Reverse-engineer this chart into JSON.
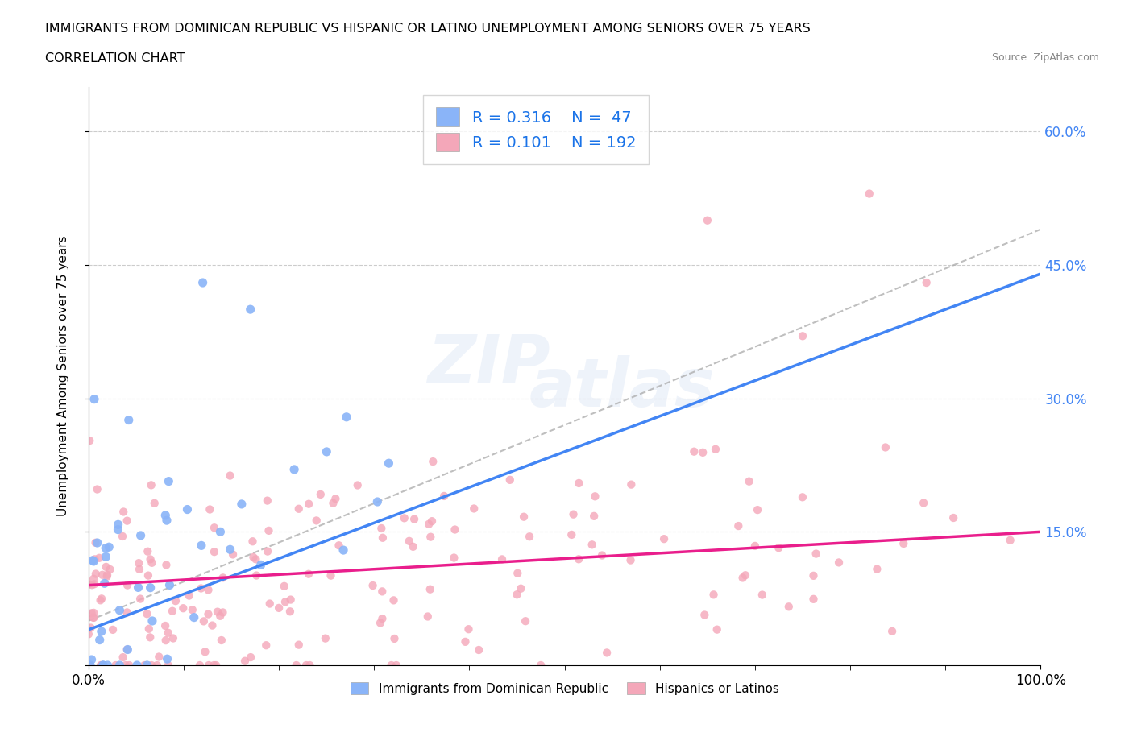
{
  "title_line1": "IMMIGRANTS FROM DOMINICAN REPUBLIC VS HISPANIC OR LATINO UNEMPLOYMENT AMONG SENIORS OVER 75 YEARS",
  "title_line2": "CORRELATION CHART",
  "source_text": "Source: ZipAtlas.com",
  "ylabel": "Unemployment Among Seniors over 75 years",
  "watermark_line1": "ZIP",
  "watermark_line2": "atlas",
  "blue_R": 0.316,
  "blue_N": 47,
  "pink_R": 0.101,
  "pink_N": 192,
  "blue_scatter_color": "#8ab4f8",
  "pink_scatter_color": "#f4a7b9",
  "blue_line_color": "#4285f4",
  "pink_line_color": "#e91e8c",
  "legend_label_color": "#1a73e8",
  "ytick_color": "#4285f4",
  "xlim": [
    0,
    1.0
  ],
  "ylim": [
    0,
    0.65
  ],
  "ytick_positions": [
    0.0,
    0.15,
    0.3,
    0.45,
    0.6
  ],
  "ytick_labels": [
    "",
    "15.0%",
    "30.0%",
    "45.0%",
    "60.0%"
  ],
  "bottom_legend_label1": "Immigrants from Dominican Republic",
  "bottom_legend_label2": "Hispanics or Latinos"
}
